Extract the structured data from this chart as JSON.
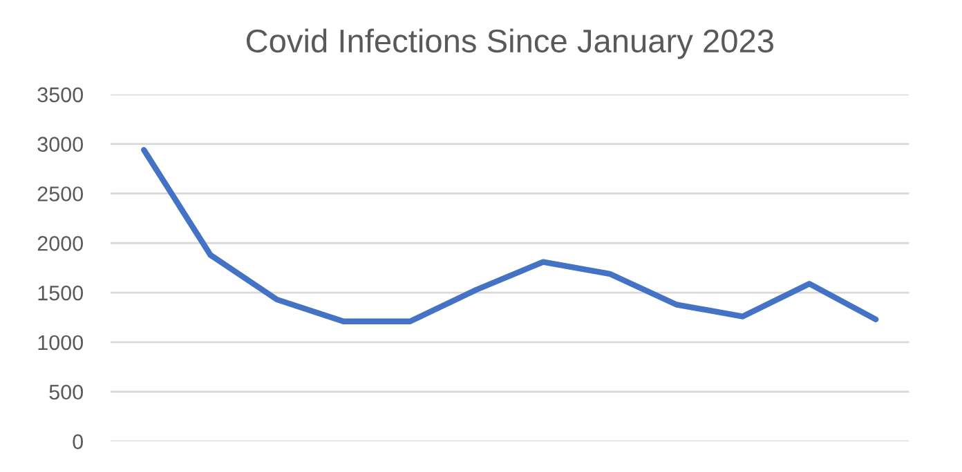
{
  "chart_data": {
    "type": "line",
    "title": "Covid Infections Since January 2023",
    "categories": [
      null,
      null,
      null,
      null,
      null,
      null,
      null,
      null,
      null,
      null,
      null,
      null
    ],
    "series": [
      {
        "color": "#4472c4",
        "values": [
          2940,
          1880,
          1430,
          1210,
          1210,
          1530,
          1810,
          1690,
          1380,
          1260,
          1590,
          1230
        ]
      }
    ],
    "ylim": [
      0,
      3500
    ],
    "yticks": [
      0,
      500,
      1000,
      1500,
      2000,
      2500,
      3000,
      3500
    ],
    "grid": "y",
    "legend": false,
    "marker": "none",
    "line_style": "solid"
  }
}
